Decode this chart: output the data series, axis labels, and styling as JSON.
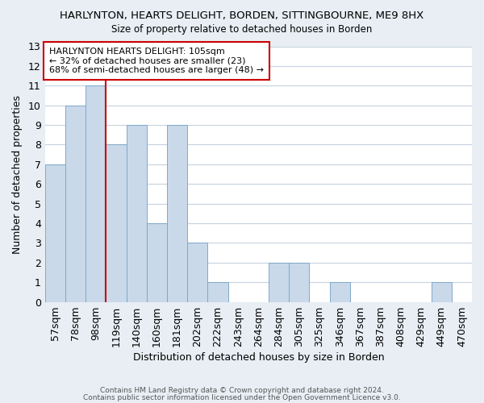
{
  "title": "HARLYNTON, HEARTS DELIGHT, BORDEN, SITTINGBOURNE, ME9 8HX",
  "subtitle": "Size of property relative to detached houses in Borden",
  "xlabel": "Distribution of detached houses by size in Borden",
  "ylabel": "Number of detached properties",
  "categories": [
    "57sqm",
    "78sqm",
    "98sqm",
    "119sqm",
    "140sqm",
    "160sqm",
    "181sqm",
    "202sqm",
    "222sqm",
    "243sqm",
    "264sqm",
    "284sqm",
    "305sqm",
    "325sqm",
    "346sqm",
    "367sqm",
    "387sqm",
    "408sqm",
    "429sqm",
    "449sqm",
    "470sqm"
  ],
  "values": [
    7,
    10,
    11,
    8,
    9,
    4,
    9,
    3,
    1,
    0,
    0,
    2,
    2,
    0,
    1,
    0,
    0,
    0,
    0,
    1,
    0
  ],
  "bar_color": "#c9d9ea",
  "bar_edge_color": "#7fa8c8",
  "red_line_x": 2.5,
  "ylim": [
    0,
    13
  ],
  "yticks": [
    0,
    1,
    2,
    3,
    4,
    5,
    6,
    7,
    8,
    9,
    10,
    11,
    12,
    13
  ],
  "annotation_title": "HARLYNTON HEARTS DELIGHT: 105sqm",
  "annotation_line1": "← 32% of detached houses are smaller (23)",
  "annotation_line2": "68% of semi-detached houses are larger (48) →",
  "footer1": "Contains HM Land Registry data © Crown copyright and database right 2024.",
  "footer2": "Contains public sector information licensed under the Open Government Licence v3.0.",
  "background_color": "#e8eef4",
  "plot_background_color": "#ffffff",
  "grid_color": "#c5d2de"
}
